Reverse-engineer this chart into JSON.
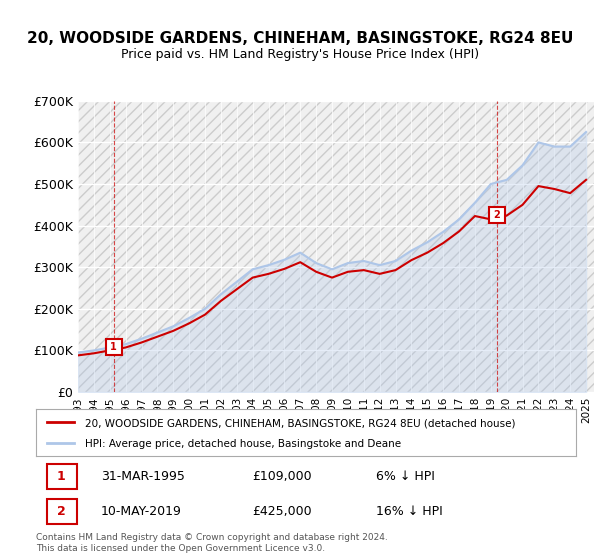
{
  "title": "20, WOODSIDE GARDENS, CHINEHAM, BASINGSTOKE, RG24 8EU",
  "subtitle": "Price paid vs. HM Land Registry's House Price Index (HPI)",
  "ylabel": "",
  "xlabel": "",
  "ylim": [
    0,
    700000
  ],
  "yticks": [
    0,
    100000,
    200000,
    300000,
    400000,
    500000,
    600000,
    700000
  ],
  "ytick_labels": [
    "£0",
    "£100K",
    "£200K",
    "£300K",
    "£400K",
    "£500K",
    "£600K",
    "£700K"
  ],
  "background_color": "#ffffff",
  "plot_bg_color": "#f0f0f0",
  "grid_color": "#ffffff",
  "hpi_color": "#aec6e8",
  "price_color": "#cc0000",
  "marker1_x": 1995.25,
  "marker1_y": 109000,
  "marker2_x": 2019.37,
  "marker2_y": 425000,
  "legend_line1": "20, WOODSIDE GARDENS, CHINEHAM, BASINGSTOKE, RG24 8EU (detached house)",
  "legend_line2": "HPI: Average price, detached house, Basingstoke and Deane",
  "table_row1": [
    "1",
    "31-MAR-1995",
    "£109,000",
    "6% ↓ HPI"
  ],
  "table_row2": [
    "2",
    "10-MAY-2019",
    "£425,000",
    "16% ↓ HPI"
  ],
  "copyright_text": "Contains HM Land Registry data © Crown copyright and database right 2024.\nThis data is licensed under the Open Government Licence v3.0.",
  "hpi_years": [
    1993,
    1994,
    1995,
    1996,
    1997,
    1998,
    1999,
    2000,
    2001,
    2002,
    2003,
    2004,
    2005,
    2006,
    2007,
    2008,
    2009,
    2010,
    2011,
    2012,
    2013,
    2014,
    2015,
    2016,
    2017,
    2018,
    2019,
    2020,
    2021,
    2022,
    2023,
    2024,
    2025
  ],
  "hpi_values": [
    95000,
    100000,
    107000,
    115000,
    128000,
    143000,
    158000,
    178000,
    200000,
    235000,
    265000,
    295000,
    305000,
    318000,
    335000,
    310000,
    295000,
    310000,
    315000,
    305000,
    315000,
    340000,
    360000,
    385000,
    415000,
    455000,
    500000,
    510000,
    545000,
    600000,
    590000,
    590000,
    625000
  ],
  "price_years": [
    1993,
    1994,
    1995,
    1996,
    1997,
    1998,
    1999,
    2000,
    2001,
    2002,
    2003,
    2004,
    2005,
    2006,
    2007,
    2008,
    2009,
    2010,
    2011,
    2012,
    2013,
    2014,
    2015,
    2016,
    2017,
    2018,
    2019,
    2020,
    2021,
    2022,
    2023,
    2024,
    2025
  ],
  "price_values": [
    88000,
    93000,
    100000,
    107000,
    119000,
    133000,
    147000,
    165000,
    186000,
    219000,
    247000,
    275000,
    284000,
    296000,
    312000,
    289000,
    275000,
    289000,
    293000,
    284000,
    293000,
    317000,
    335000,
    358000,
    386000,
    423000,
    415000,
    424000,
    450000,
    495000,
    488000,
    478000,
    510000
  ],
  "xtick_years": [
    1993,
    1994,
    1995,
    1996,
    1997,
    1998,
    1999,
    2000,
    2001,
    2002,
    2003,
    2004,
    2005,
    2006,
    2007,
    2008,
    2009,
    2010,
    2011,
    2012,
    2013,
    2014,
    2015,
    2016,
    2017,
    2018,
    2019,
    2020,
    2021,
    2022,
    2023,
    2024,
    2025
  ]
}
